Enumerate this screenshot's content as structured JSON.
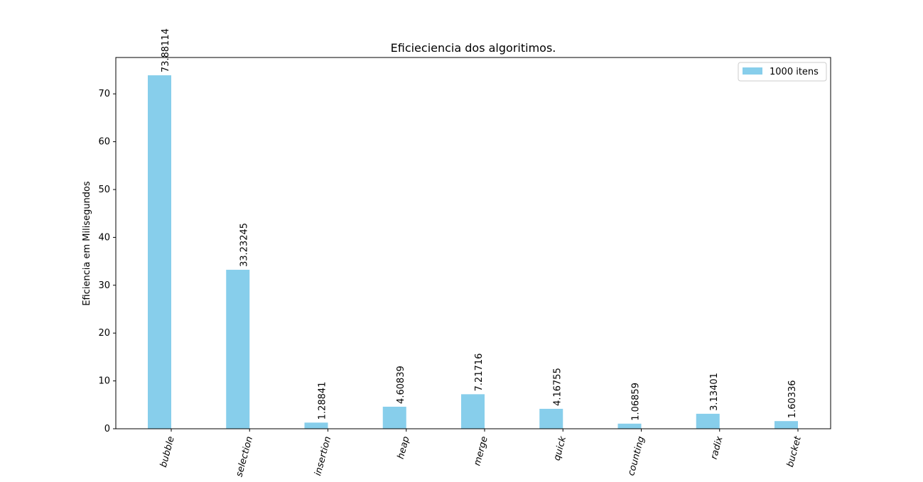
{
  "chart_data": {
    "type": "bar",
    "title": "Eficieciencia dos algoritimos.",
    "xlabel": "",
    "ylabel": "Eficiencia em Milisegundos",
    "categories": [
      "bubble",
      "selection",
      "insertion",
      "heap",
      "merge",
      "quick",
      "counting",
      "radix",
      "bucket"
    ],
    "series": [
      {
        "name": "1000 itens",
        "color": "#87ceeb",
        "values": [
          73.88114,
          33.23245,
          1.28841,
          4.60839,
          7.21716,
          4.16755,
          1.06859,
          3.13401,
          1.60336
        ],
        "labels": [
          "73.88114",
          "33.23245",
          "1.28841",
          "4.60839",
          "7.21716",
          "4.16755",
          "1.06859",
          "3.13401",
          "1.60336"
        ]
      }
    ],
    "ylim": [
      0,
      77.6
    ],
    "yticks": [
      0,
      10,
      20,
      30,
      40,
      50,
      60,
      70
    ],
    "grid": false,
    "legend_position": "top-right"
  }
}
